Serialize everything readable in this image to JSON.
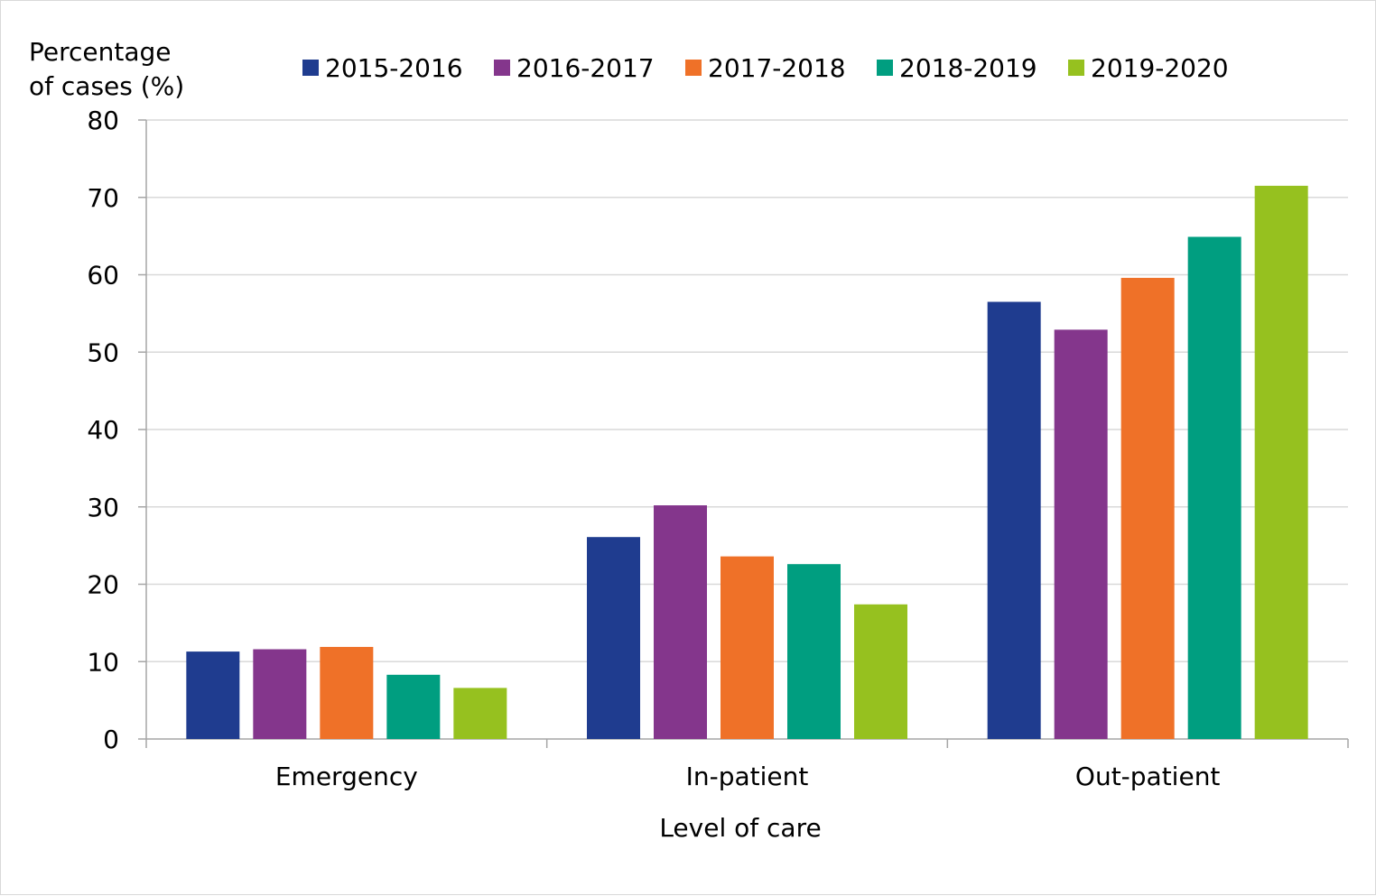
{
  "chart_data": {
    "type": "bar",
    "title": "",
    "ylabel_lines": [
      "Percentage",
      "of cases (%)"
    ],
    "xlabel": "Level of care",
    "ylim": [
      0,
      80
    ],
    "yticks": [
      0,
      10,
      20,
      30,
      40,
      50,
      60,
      70,
      80
    ],
    "grid": true,
    "legend_position": "top",
    "categories": [
      "Emergency",
      "In-patient",
      "Out-patient"
    ],
    "series": [
      {
        "name": "2015-2016",
        "color": "#1f3c8f",
        "values": [
          11.3,
          26.1,
          56.5
        ]
      },
      {
        "name": "2016-2017",
        "color": "#84368c",
        "values": [
          11.6,
          30.2,
          52.9
        ]
      },
      {
        "name": "2017-2018",
        "color": "#ef7128",
        "values": [
          11.9,
          23.6,
          59.6
        ]
      },
      {
        "name": "2018-2019",
        "color": "#009e80",
        "values": [
          8.3,
          22.6,
          64.9
        ]
      },
      {
        "name": "2019-2020",
        "color": "#96c11f",
        "values": [
          6.6,
          17.4,
          71.5
        ]
      }
    ]
  }
}
